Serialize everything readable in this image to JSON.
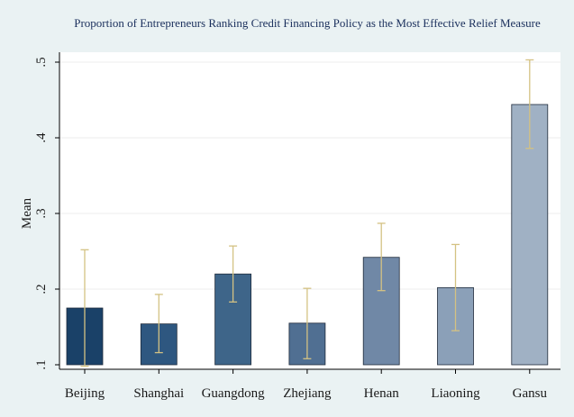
{
  "chart_data": {
    "type": "bar",
    "title": "Proportion of Entrepreneurs Ranking Credit Financing Policy as the Most Effective Relief Measure",
    "ylabel": "Mean",
    "xlabel": "",
    "ylim": [
      0.1,
      0.5
    ],
    "ytick_values": [
      0.1,
      0.2,
      0.3,
      0.4,
      0.5
    ],
    "ytick_labels": [
      ".1",
      ".2",
      ".3",
      ".4",
      ".5"
    ],
    "grid": true,
    "categories": [
      "Beijing",
      "Shanghai",
      "Guangdong",
      "Zhejiang",
      "Henan",
      "Liaoning",
      "Gansu"
    ],
    "values": [
      0.175,
      0.154,
      0.22,
      0.155,
      0.242,
      0.202,
      0.444
    ],
    "error_low": [
      0.098,
      0.116,
      0.183,
      0.108,
      0.198,
      0.145,
      0.386
    ],
    "error_high": [
      0.252,
      0.193,
      0.257,
      0.201,
      0.287,
      0.259,
      0.503
    ],
    "bar_colors": [
      "#1a4168",
      "#2e5780",
      "#3e6589",
      "#506f92",
      "#7088a6",
      "#8ba0b8",
      "#a0b1c4"
    ],
    "errorbar_color": "#d4c283",
    "background_color": "#eaf2f3",
    "plot_background_color": "#ffffff"
  }
}
